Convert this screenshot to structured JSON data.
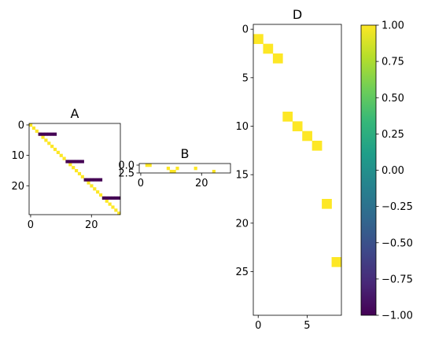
{
  "chart_data": [
    {
      "type": "heatmap",
      "title": "A",
      "rows": 30,
      "cols": 30,
      "x_ticks": [
        0,
        20
      ],
      "y_ticks": [
        0,
        10,
        20
      ],
      "cells": [
        {
          "r": 0,
          "c": 0,
          "v": 1
        },
        {
          "r": 1,
          "c": 1,
          "v": 1
        },
        {
          "r": 2,
          "c": 2,
          "v": 1
        },
        {
          "r": 3,
          "c": 3,
          "v": 1
        },
        {
          "r": 4,
          "c": 4,
          "v": 1
        },
        {
          "r": 5,
          "c": 5,
          "v": 1
        },
        {
          "r": 6,
          "c": 6,
          "v": 1
        },
        {
          "r": 7,
          "c": 7,
          "v": 1
        },
        {
          "r": 8,
          "c": 8,
          "v": 1
        },
        {
          "r": 9,
          "c": 9,
          "v": 1
        },
        {
          "r": 10,
          "c": 10,
          "v": 1
        },
        {
          "r": 11,
          "c": 11,
          "v": 1
        },
        {
          "r": 12,
          "c": 12,
          "v": 1
        },
        {
          "r": 13,
          "c": 13,
          "v": 1
        },
        {
          "r": 14,
          "c": 14,
          "v": 1
        },
        {
          "r": 15,
          "c": 15,
          "v": 1
        },
        {
          "r": 16,
          "c": 16,
          "v": 1
        },
        {
          "r": 17,
          "c": 17,
          "v": 1
        },
        {
          "r": 18,
          "c": 18,
          "v": 1
        },
        {
          "r": 19,
          "c": 19,
          "v": 1
        },
        {
          "r": 20,
          "c": 20,
          "v": 1
        },
        {
          "r": 21,
          "c": 21,
          "v": 1
        },
        {
          "r": 22,
          "c": 22,
          "v": 1
        },
        {
          "r": 23,
          "c": 23,
          "v": 1
        },
        {
          "r": 24,
          "c": 24,
          "v": 1
        },
        {
          "r": 25,
          "c": 25,
          "v": 1
        },
        {
          "r": 26,
          "c": 26,
          "v": 1
        },
        {
          "r": 27,
          "c": 27,
          "v": 1
        },
        {
          "r": 28,
          "c": 28,
          "v": 1
        },
        {
          "r": 29,
          "c": 29,
          "v": 1
        },
        {
          "r": 3,
          "c": 3,
          "v": -1
        },
        {
          "r": 3,
          "c": 4,
          "v": -1
        },
        {
          "r": 3,
          "c": 5,
          "v": -1
        },
        {
          "r": 3,
          "c": 6,
          "v": -1
        },
        {
          "r": 3,
          "c": 7,
          "v": -1
        },
        {
          "r": 3,
          "c": 8,
          "v": -1
        },
        {
          "r": 12,
          "c": 12,
          "v": -1
        },
        {
          "r": 12,
          "c": 13,
          "v": -1
        },
        {
          "r": 12,
          "c": 14,
          "v": -1
        },
        {
          "r": 12,
          "c": 15,
          "v": -1
        },
        {
          "r": 12,
          "c": 16,
          "v": -1
        },
        {
          "r": 12,
          "c": 17,
          "v": -1
        },
        {
          "r": 18,
          "c": 18,
          "v": -1
        },
        {
          "r": 18,
          "c": 19,
          "v": -1
        },
        {
          "r": 18,
          "c": 20,
          "v": -1
        },
        {
          "r": 18,
          "c": 21,
          "v": -1
        },
        {
          "r": 18,
          "c": 22,
          "v": -1
        },
        {
          "r": 18,
          "c": 23,
          "v": -1
        },
        {
          "r": 24,
          "c": 24,
          "v": -1
        },
        {
          "r": 24,
          "c": 25,
          "v": -1
        },
        {
          "r": 24,
          "c": 26,
          "v": -1
        },
        {
          "r": 24,
          "c": 27,
          "v": -1
        },
        {
          "r": 24,
          "c": 28,
          "v": -1
        },
        {
          "r": 24,
          "c": 29,
          "v": -1
        }
      ]
    },
    {
      "type": "heatmap",
      "title": "B",
      "rows": 3,
      "cols": 30,
      "x_ticks": [
        0,
        20
      ],
      "y_ticks": [
        0.0,
        2.5
      ],
      "cells": [
        {
          "r": 0,
          "c": 2,
          "v": 1
        },
        {
          "r": 0,
          "c": 3,
          "v": 1
        },
        {
          "r": 1,
          "c": 9,
          "v": 1
        },
        {
          "r": 1,
          "c": 12,
          "v": 1
        },
        {
          "r": 1,
          "c": 18,
          "v": 1
        },
        {
          "r": 2,
          "c": 10,
          "v": 1
        },
        {
          "r": 2,
          "c": 11,
          "v": 1
        },
        {
          "r": 2,
          "c": 24,
          "v": 1
        }
      ]
    },
    {
      "type": "heatmap",
      "title": "D",
      "rows": 30,
      "cols": 9,
      "x_ticks": [
        0,
        5
      ],
      "y_ticks": [
        0,
        5,
        10,
        15,
        20,
        25
      ],
      "cells": [
        {
          "r": 1,
          "c": 0,
          "v": 1
        },
        {
          "r": 2,
          "c": 1,
          "v": 1
        },
        {
          "r": 3,
          "c": 2,
          "v": 1
        },
        {
          "r": 9,
          "c": 3,
          "v": 1
        },
        {
          "r": 10,
          "c": 4,
          "v": 1
        },
        {
          "r": 11,
          "c": 5,
          "v": 1
        },
        {
          "r": 12,
          "c": 6,
          "v": 1
        },
        {
          "r": 18,
          "c": 7,
          "v": 1
        },
        {
          "r": 24,
          "c": 8,
          "v": 1
        }
      ]
    },
    {
      "type": "colorbar",
      "min": -1.0,
      "max": 1.0,
      "ticks": [
        "1.00",
        "0.75",
        "0.50",
        "0.25",
        "0.00",
        "−0.25",
        "−0.50",
        "−0.75",
        "−1.00"
      ],
      "tick_values": [
        1.0,
        0.75,
        0.5,
        0.25,
        0.0,
        -0.25,
        -0.5,
        -0.75,
        -1.0
      ],
      "colormap": [
        "#440154",
        "#482878",
        "#3e4989",
        "#31688e",
        "#26828e",
        "#1f9e89",
        "#35b779",
        "#6ece58",
        "#b5de2b",
        "#fde725"
      ]
    }
  ]
}
